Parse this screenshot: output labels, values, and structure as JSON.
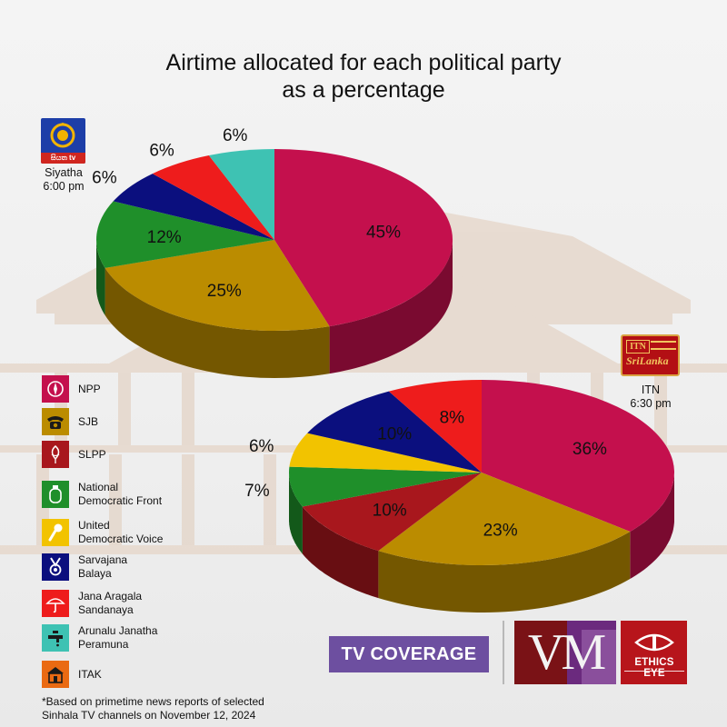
{
  "title": {
    "line1": "Airtime allocated for each political party",
    "line2": "as a percentage"
  },
  "channels": {
    "siyatha": {
      "logo_text": "සියත tv",
      "name": "Siyatha",
      "time": "6:00 pm"
    },
    "itn": {
      "logo_box": "ITN",
      "logo_script": "SriLanka",
      "name": "ITN",
      "time": "6:30 pm"
    }
  },
  "chart_data": [
    {
      "type": "pie",
      "channel": "Siyatha",
      "slices": [
        {
          "party": "NPP",
          "value": 45,
          "label": "45%",
          "color": "#c4104d"
        },
        {
          "party": "SJB",
          "value": 25,
          "label": "25%",
          "color": "#bb8c00"
        },
        {
          "party": "National Democratic Front",
          "value": 12,
          "label": "12%",
          "color": "#1f8f2a"
        },
        {
          "party": "Sarvajana Balaya",
          "value": 6,
          "label": "6%",
          "color": "#0b0f7e"
        },
        {
          "party": "Jana Aragala Sandanaya",
          "value": 6,
          "label": "6%",
          "color": "#ee1c1c"
        },
        {
          "party": "Arunalu Janatha Peramuna",
          "value": 6,
          "label": "6%",
          "color": "#3ec2b3"
        }
      ]
    },
    {
      "type": "pie",
      "channel": "ITN",
      "slices": [
        {
          "party": "NPP",
          "value": 36,
          "label": "36%",
          "color": "#c4104d"
        },
        {
          "party": "SJB",
          "value": 23,
          "label": "23%",
          "color": "#bb8c00"
        },
        {
          "party": "SLPP",
          "value": 10,
          "label": "10%",
          "color": "#a8171d"
        },
        {
          "party": "National Democratic Front",
          "value": 7,
          "label": "7%",
          "color": "#1f8f2a"
        },
        {
          "party": "United Democratic Voice",
          "value": 6,
          "label": "6%",
          "color": "#f2c300"
        },
        {
          "party": "Sarvajana Balaya",
          "value": 10,
          "label": "10%",
          "color": "#0b0f7e"
        },
        {
          "party": "Jana Aragala Sandanaya",
          "value": 8,
          "label": "8%",
          "color": "#ee1c1c"
        }
      ]
    }
  ],
  "legend": [
    {
      "label": "NPP",
      "icon": "npp-compass-icon",
      "color": "#c4104d"
    },
    {
      "label": "SJB",
      "icon": "telephone-icon",
      "color": "#bb8c00"
    },
    {
      "label": "SLPP",
      "icon": "lotus-bud-icon",
      "color": "#a8171d"
    },
    {
      "label": "National\nDemocratic Front",
      "icon": "gas-cylinder-icon",
      "color": "#1f8f2a"
    },
    {
      "label": "United\nDemocratic Voice",
      "icon": "microphone-icon",
      "color": "#f2c300"
    },
    {
      "label": "Sarvajana\nBalaya",
      "icon": "medal-icon",
      "color": "#0b0f7e"
    },
    {
      "label": "Jana Aragala\nSandanaya",
      "icon": "umbrella-icon",
      "color": "#ee1c1c"
    },
    {
      "label": "Arunalu Janatha\nPeramuna",
      "icon": "water-tap-icon",
      "color": "#3ec2b3"
    },
    {
      "label": "ITAK",
      "icon": "house-icon",
      "color": "#ea6a12"
    }
  ],
  "footnote": "*Based on primetime news reports of selected\nSinhala TV channels on November 12, 2024",
  "badge": {
    "text": "TV COVERAGE",
    "color": "#6d4fa0"
  },
  "logos": {
    "vm": "VM",
    "ethics": "ETHICS EYE"
  }
}
